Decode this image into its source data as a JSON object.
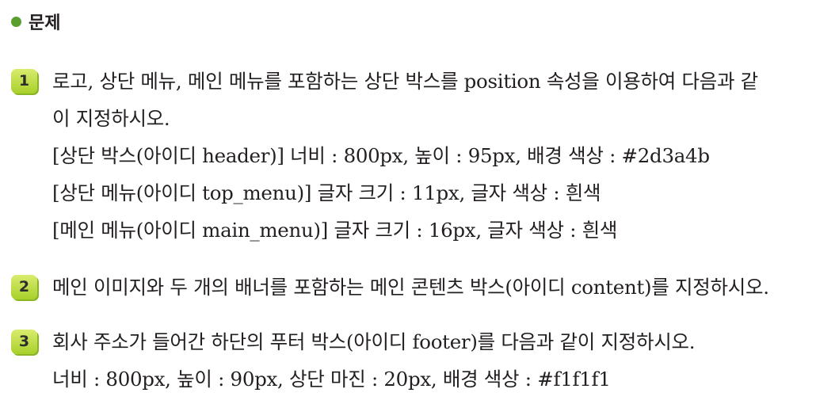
{
  "section": {
    "title": "문제"
  },
  "items": [
    {
      "number": "1",
      "lines": [
        "로고, 상단 메뉴, 메인 메뉴를 포함하는 상단 박스를 position 속성을 이용하여 다음과 같",
        "이 지정하시오.",
        "[상단 박스(아이디 header)] 너비 : 800px, 높이 : 95px, 배경 색상 : #2d3a4b",
        "[상단 메뉴(아이디 top_menu)] 글자 크기 : 11px, 글자 색상 : 흰색",
        "[메인 메뉴(아이디 main_menu)] 글자 크기 : 16px, 글자 색상 : 흰색"
      ]
    },
    {
      "number": "2",
      "lines": [
        "메인 이미지와 두 개의 배너를 포함하는 메인 콘텐츠 박스(아이디 content)를 지정하시오."
      ]
    },
    {
      "number": "3",
      "lines": [
        "회사 주소가 들어간 하단의 푸터 박스(아이디 footer)를 다음과 같이 지정하시오.",
        "너비 : 800px, 높이 : 90px, 상단 마진 : 20px, 배경 색상 : #f1f1f1"
      ]
    }
  ]
}
